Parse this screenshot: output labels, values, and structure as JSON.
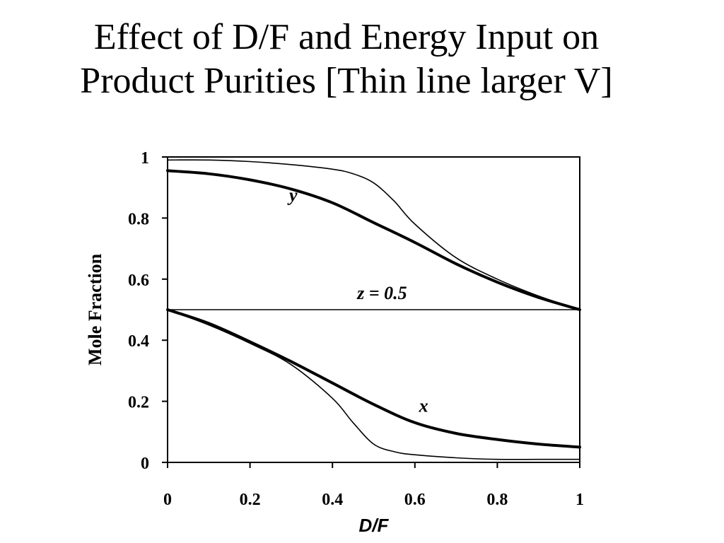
{
  "chart_data": {
    "type": "line",
    "title_lines": [
      "Effect of D/F and Energy Input on",
      "Product Purities [Thin line larger V]"
    ],
    "xlabel": "D/F",
    "ylabel": "Mole Fraction",
    "xlim": [
      0,
      1
    ],
    "ylim": [
      0,
      1
    ],
    "x_ticks": [
      0,
      0.2,
      0.4,
      0.6,
      0.8,
      1
    ],
    "x_tick_labels": [
      "0",
      "0.2",
      "0.4",
      "0.6",
      "0.8",
      "1"
    ],
    "y_ticks": [
      0,
      0.2,
      0.4,
      0.6,
      0.8,
      1
    ],
    "y_tick_labels": [
      "0",
      "0.2",
      "0.4",
      "0.6",
      "0.8",
      "1"
    ],
    "grid": false,
    "legend": "none",
    "series": [
      {
        "name": "y",
        "stroke": "thick",
        "x": [
          0,
          0.1,
          0.2,
          0.3,
          0.4,
          0.5,
          0.6,
          0.7,
          0.8,
          0.9,
          1.0
        ],
        "y": [
          0.955,
          0.945,
          0.925,
          0.895,
          0.85,
          0.785,
          0.72,
          0.65,
          0.59,
          0.54,
          0.5
        ]
      },
      {
        "x": [
          0,
          0.1,
          0.2,
          0.3,
          0.4,
          0.45,
          0.5,
          0.55,
          0.6,
          0.7,
          0.8,
          0.9,
          1.0
        ],
        "y": [
          0.99,
          0.99,
          0.985,
          0.975,
          0.96,
          0.945,
          0.915,
          0.855,
          0.78,
          0.67,
          0.6,
          0.545,
          0.5
        ],
        "stroke": "thin"
      },
      {
        "x": [
          0,
          1
        ],
        "y": [
          0.5,
          0.5
        ],
        "stroke": "thin"
      },
      {
        "name": "x",
        "stroke": "thick",
        "x": [
          0,
          0.1,
          0.2,
          0.3,
          0.4,
          0.5,
          0.6,
          0.7,
          0.8,
          0.9,
          1.0
        ],
        "y": [
          0.5,
          0.455,
          0.395,
          0.33,
          0.26,
          0.19,
          0.13,
          0.095,
          0.075,
          0.06,
          0.05
        ]
      },
      {
        "x": [
          0,
          0.1,
          0.2,
          0.3,
          0.4,
          0.45,
          0.5,
          0.55,
          0.6,
          0.7,
          0.8,
          0.9,
          1.0
        ],
        "y": [
          0.5,
          0.45,
          0.39,
          0.32,
          0.21,
          0.13,
          0.06,
          0.035,
          0.025,
          0.015,
          0.01,
          0.01,
          0.01
        ],
        "stroke": "thin"
      }
    ],
    "annotations": [
      {
        "text": "y",
        "x": 0.295,
        "y": 0.855
      },
      {
        "text": "z = 0.5",
        "x": 0.46,
        "y": 0.535
      },
      {
        "text": "x",
        "x": 0.61,
        "y": 0.165
      }
    ]
  }
}
